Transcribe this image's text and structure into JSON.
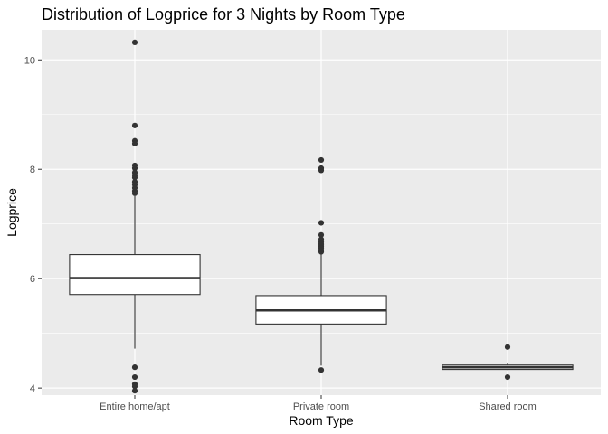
{
  "chart_data": {
    "type": "boxplot",
    "title": "Distribution of Logprice for 3 Nights by Room Type",
    "xlabel": "Room Type",
    "ylabel": "Logprice",
    "ylim": [
      3.87,
      10.55
    ],
    "yticks": [
      4,
      6,
      8,
      10
    ],
    "grid": true,
    "legend": "none",
    "colors": {
      "panel": "#ebebeb",
      "grid": "#ffffff",
      "box_fill": "#ffffff",
      "box_line": "#333333",
      "point": "#333333",
      "tick_text": "#4d4d4d"
    },
    "categories": [
      "Entire home/apt",
      "Private room",
      "Shared room"
    ],
    "boxes": [
      {
        "category": "Entire home/apt",
        "whisker_low": 4.72,
        "q1": 5.71,
        "median": 6.01,
        "q3": 6.44,
        "whisker_high": 7.51,
        "outliers": [
          10.32,
          8.8,
          8.52,
          8.47,
          8.07,
          8.02,
          7.94,
          7.89,
          7.85,
          7.77,
          7.72,
          7.66,
          7.6,
          7.56,
          4.38,
          4.2,
          4.07,
          4.03,
          3.95
        ]
      },
      {
        "category": "Private room",
        "whisker_low": 4.41,
        "q1": 5.17,
        "median": 5.42,
        "q3": 5.69,
        "whisker_high": 6.47,
        "outliers": [
          8.17,
          8.02,
          7.98,
          7.02,
          6.8,
          6.72,
          6.67,
          6.63,
          6.59,
          6.56,
          6.52,
          6.49,
          4.33
        ]
      },
      {
        "category": "Shared room",
        "whisker_low": 4.33,
        "q1": 4.34,
        "median": 4.38,
        "q3": 4.42,
        "whisker_high": 4.45,
        "outliers": [
          4.75,
          4.2
        ]
      }
    ]
  }
}
